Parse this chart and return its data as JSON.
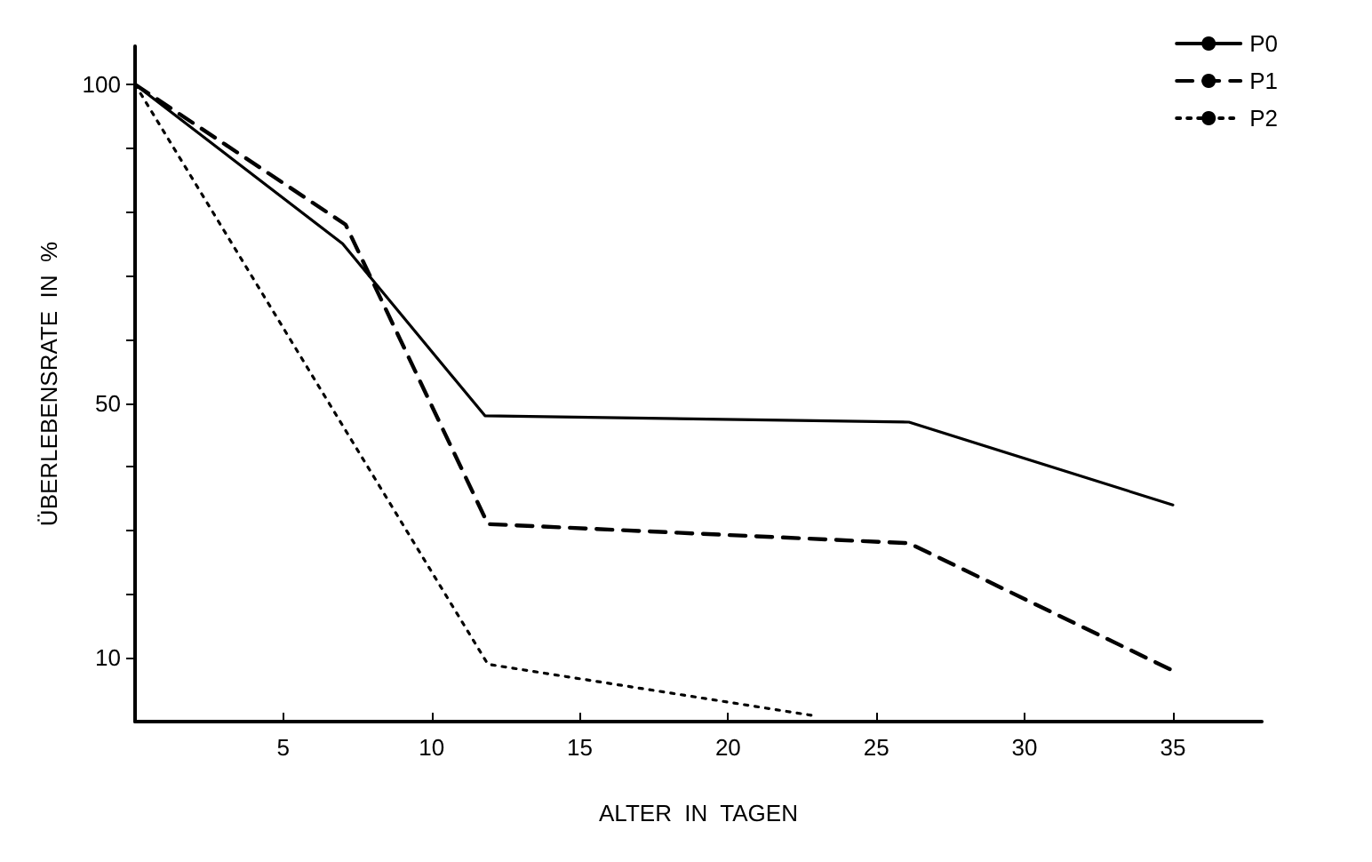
{
  "chart_data": {
    "type": "line",
    "xlabel": "ALTER  IN  TAGEN",
    "ylabel": "ÜBERLEBENSRATE  IN  %",
    "xlim": [
      0,
      38
    ],
    "xticks": [
      5,
      10,
      15,
      20,
      25,
      30,
      35
    ],
    "ylim": [
      0,
      106
    ],
    "yticks": [
      {
        "value": 10,
        "label": "10"
      },
      {
        "value": 20,
        "label": null
      },
      {
        "value": 30,
        "label": null
      },
      {
        "value": 40,
        "label": null
      },
      {
        "value": 50,
        "label": "50"
      },
      {
        "value": 60,
        "label": null
      },
      {
        "value": 70,
        "label": null
      },
      {
        "value": 80,
        "label": null
      },
      {
        "value": 90,
        "label": null
      },
      {
        "value": 100,
        "label": "100"
      }
    ],
    "grid": false,
    "legend": "top right",
    "marker": "none",
    "series": [
      {
        "name": "P0",
        "color": "#000000",
        "line_style": "solid",
        "x": [
          0,
          7,
          11.8,
          26.1,
          35
        ],
        "values": [
          100,
          75,
          48,
          47,
          34
        ]
      },
      {
        "name": "P1",
        "color": "#000000",
        "line_style": "dashed",
        "x": [
          0,
          7.1,
          11.9,
          26.1,
          35
        ],
        "values": [
          100,
          78,
          31,
          28,
          8
        ]
      },
      {
        "name": "P2",
        "color": "#000000",
        "line_style": "dotted",
        "x": [
          0,
          11.9,
          22.8
        ],
        "values": [
          100,
          9,
          1
        ]
      }
    ]
  }
}
